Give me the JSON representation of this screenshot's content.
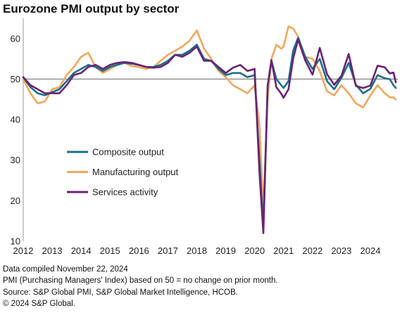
{
  "title": "Eurozone PMI output by sector",
  "footer": {
    "line1": "Data compiled November 22, 2024",
    "line2": "PMI (Purchasing Managers' Index) based on 50 = no change on prior month.",
    "line3": "Source: S&P Global PMI, S&P Global Market Intelligence, HCOB.",
    "line4": "© 2024 S&P Global."
  },
  "chart_data": {
    "type": "line",
    "ylim": [
      10,
      65
    ],
    "xlim": [
      2012.0,
      2024.95
    ],
    "yticks": [
      10,
      20,
      30,
      40,
      50,
      60
    ],
    "xticks": [
      "2012",
      "2013",
      "2014",
      "2015",
      "2016",
      "2017",
      "2018",
      "2019",
      "2020",
      "2021",
      "2022",
      "2023",
      "2024"
    ],
    "reference_line": 50,
    "grid": false,
    "legend_position": "center-left",
    "series": [
      {
        "name": "Composite output",
        "color": "#1b6f86",
        "points": [
          [
            2012.0,
            50.5
          ],
          [
            2012.25,
            48.0
          ],
          [
            2012.5,
            46.5
          ],
          [
            2012.75,
            46.0
          ],
          [
            2013.0,
            46.8
          ],
          [
            2013.25,
            47.5
          ],
          [
            2013.5,
            49.5
          ],
          [
            2013.75,
            51.5
          ],
          [
            2014.0,
            52.5
          ],
          [
            2014.25,
            53.5
          ],
          [
            2014.5,
            53.0
          ],
          [
            2014.75,
            52.0
          ],
          [
            2015.0,
            53.0
          ],
          [
            2015.25,
            53.5
          ],
          [
            2015.5,
            54.0
          ],
          [
            2015.75,
            53.8
          ],
          [
            2016.0,
            53.5
          ],
          [
            2016.25,
            53.0
          ],
          [
            2016.5,
            53.0
          ],
          [
            2016.75,
            53.5
          ],
          [
            2017.0,
            54.5
          ],
          [
            2017.25,
            56.0
          ],
          [
            2017.5,
            56.0
          ],
          [
            2017.75,
            57.0
          ],
          [
            2018.0,
            58.5
          ],
          [
            2018.25,
            55.0
          ],
          [
            2018.5,
            54.5
          ],
          [
            2018.75,
            52.5
          ],
          [
            2019.0,
            51.0
          ],
          [
            2019.25,
            51.5
          ],
          [
            2019.5,
            51.5
          ],
          [
            2019.75,
            50.5
          ],
          [
            2020.0,
            51.0
          ],
          [
            2020.17,
            29.5
          ],
          [
            2020.3,
            13.5
          ],
          [
            2020.45,
            48.5
          ],
          [
            2020.58,
            54.5
          ],
          [
            2020.75,
            50.0
          ],
          [
            2020.92,
            48.5
          ],
          [
            2021.0,
            47.8
          ],
          [
            2021.17,
            49.5
          ],
          [
            2021.33,
            57.0
          ],
          [
            2021.5,
            60.2
          ],
          [
            2021.75,
            55.5
          ],
          [
            2022.0,
            52.5
          ],
          [
            2022.25,
            55.0
          ],
          [
            2022.5,
            49.5
          ],
          [
            2022.75,
            47.5
          ],
          [
            2023.0,
            50.3
          ],
          [
            2023.25,
            54.0
          ],
          [
            2023.5,
            48.6
          ],
          [
            2023.75,
            46.5
          ],
          [
            2024.0,
            47.6
          ],
          [
            2024.25,
            51.0
          ],
          [
            2024.5,
            50.2
          ],
          [
            2024.67,
            50.0
          ],
          [
            2024.8,
            48.5
          ],
          [
            2024.88,
            47.8
          ]
        ]
      },
      {
        "name": "Manufacturing output",
        "color": "#f2a75c",
        "points": [
          [
            2012.0,
            50.0
          ],
          [
            2012.25,
            46.5
          ],
          [
            2012.5,
            44.0
          ],
          [
            2012.75,
            44.5
          ],
          [
            2013.0,
            47.5
          ],
          [
            2013.25,
            48.0
          ],
          [
            2013.5,
            51.0
          ],
          [
            2013.75,
            53.0
          ],
          [
            2014.0,
            55.5
          ],
          [
            2014.25,
            56.5
          ],
          [
            2014.5,
            53.0
          ],
          [
            2014.75,
            51.5
          ],
          [
            2015.0,
            52.5
          ],
          [
            2015.25,
            53.5
          ],
          [
            2015.5,
            54.0
          ],
          [
            2015.75,
            53.2
          ],
          [
            2016.0,
            53.0
          ],
          [
            2016.25,
            52.5
          ],
          [
            2016.5,
            53.0
          ],
          [
            2016.75,
            54.5
          ],
          [
            2017.0,
            56.0
          ],
          [
            2017.25,
            57.0
          ],
          [
            2017.5,
            58.0
          ],
          [
            2017.75,
            59.5
          ],
          [
            2018.0,
            62.0
          ],
          [
            2018.25,
            57.5
          ],
          [
            2018.5,
            55.0
          ],
          [
            2018.75,
            52.0
          ],
          [
            2019.0,
            50.5
          ],
          [
            2019.25,
            48.5
          ],
          [
            2019.5,
            47.5
          ],
          [
            2019.75,
            46.5
          ],
          [
            2020.0,
            48.5
          ],
          [
            2020.17,
            38.5
          ],
          [
            2020.3,
            17.5
          ],
          [
            2020.45,
            45.0
          ],
          [
            2020.58,
            55.0
          ],
          [
            2020.75,
            58.5
          ],
          [
            2020.92,
            57.5
          ],
          [
            2021.0,
            58.0
          ],
          [
            2021.17,
            63.0
          ],
          [
            2021.33,
            62.5
          ],
          [
            2021.5,
            60.5
          ],
          [
            2021.75,
            55.5
          ],
          [
            2022.0,
            55.0
          ],
          [
            2022.25,
            52.0
          ],
          [
            2022.5,
            47.0
          ],
          [
            2022.75,
            46.0
          ],
          [
            2023.0,
            48.5
          ],
          [
            2023.25,
            46.5
          ],
          [
            2023.5,
            44.0
          ],
          [
            2023.75,
            43.0
          ],
          [
            2024.0,
            46.0
          ],
          [
            2024.25,
            48.5
          ],
          [
            2024.5,
            46.5
          ],
          [
            2024.67,
            45.5
          ],
          [
            2024.8,
            45.5
          ],
          [
            2024.88,
            45.0
          ]
        ]
      },
      {
        "name": "Services activity",
        "color": "#6a2273",
        "points": [
          [
            2012.0,
            50.5
          ],
          [
            2012.25,
            48.5
          ],
          [
            2012.5,
            47.5
          ],
          [
            2012.75,
            46.5
          ],
          [
            2013.0,
            46.5
          ],
          [
            2013.25,
            46.5
          ],
          [
            2013.5,
            48.5
          ],
          [
            2013.75,
            51.0
          ],
          [
            2014.0,
            51.5
          ],
          [
            2014.25,
            53.0
          ],
          [
            2014.5,
            53.5
          ],
          [
            2014.75,
            52.5
          ],
          [
            2015.0,
            53.5
          ],
          [
            2015.25,
            54.0
          ],
          [
            2015.5,
            54.2
          ],
          [
            2015.75,
            54.0
          ],
          [
            2016.0,
            53.5
          ],
          [
            2016.25,
            53.0
          ],
          [
            2016.5,
            52.8
          ],
          [
            2016.75,
            53.0
          ],
          [
            2017.0,
            54.0
          ],
          [
            2017.25,
            56.0
          ],
          [
            2017.5,
            55.5
          ],
          [
            2017.75,
            56.5
          ],
          [
            2018.0,
            58.0
          ],
          [
            2018.25,
            54.5
          ],
          [
            2018.5,
            54.5
          ],
          [
            2018.75,
            53.0
          ],
          [
            2019.0,
            51.5
          ],
          [
            2019.25,
            52.8
          ],
          [
            2019.5,
            53.5
          ],
          [
            2019.75,
            52.0
          ],
          [
            2020.0,
            52.5
          ],
          [
            2020.17,
            26.5
          ],
          [
            2020.3,
            12.0
          ],
          [
            2020.45,
            48.3
          ],
          [
            2020.58,
            54.7
          ],
          [
            2020.75,
            48.0
          ],
          [
            2020.92,
            46.4
          ],
          [
            2021.0,
            45.4
          ],
          [
            2021.17,
            47.5
          ],
          [
            2021.33,
            55.0
          ],
          [
            2021.5,
            59.8
          ],
          [
            2021.75,
            54.6
          ],
          [
            2022.0,
            51.1
          ],
          [
            2022.25,
            57.7
          ],
          [
            2022.5,
            51.2
          ],
          [
            2022.75,
            48.6
          ],
          [
            2023.0,
            50.8
          ],
          [
            2023.25,
            56.2
          ],
          [
            2023.5,
            48.3
          ],
          [
            2023.75,
            47.8
          ],
          [
            2024.0,
            48.4
          ],
          [
            2024.25,
            53.3
          ],
          [
            2024.5,
            52.9
          ],
          [
            2024.67,
            51.4
          ],
          [
            2024.8,
            51.6
          ],
          [
            2024.88,
            49.2
          ]
        ]
      }
    ]
  }
}
